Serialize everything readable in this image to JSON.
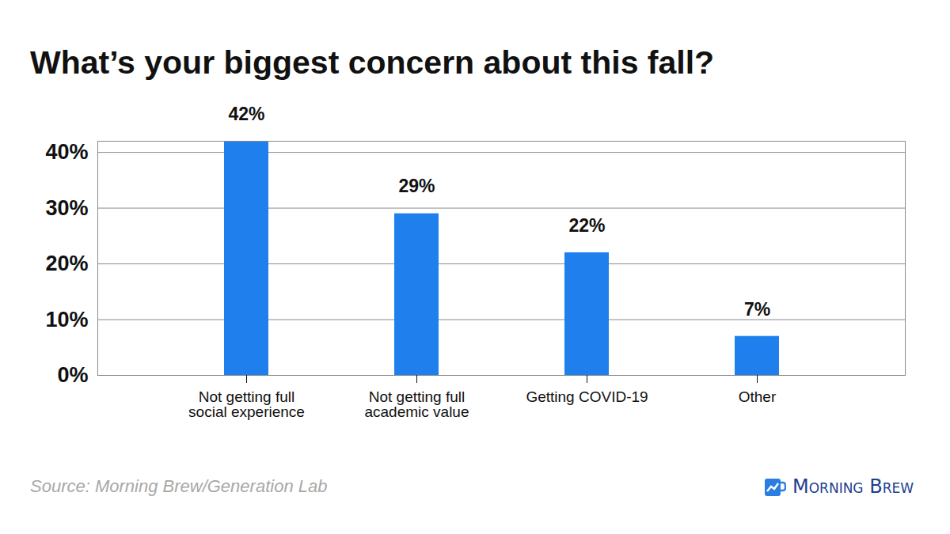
{
  "chart_data": {
    "type": "bar",
    "title": "What’s your biggest concern about this fall?",
    "categories": [
      "Not getting full social experience",
      "Not getting full academic value",
      "Getting COVID-19",
      "Other"
    ],
    "values": [
      42,
      29,
      22,
      7
    ],
    "value_labels": [
      "42%",
      "29%",
      "22%",
      "7%"
    ],
    "data_labels": true,
    "color": "#1f80ed",
    "ylim": [
      0,
      42
    ],
    "yticks": [
      {
        "value": 0,
        "label": "0%"
      },
      {
        "value": 10,
        "label": "10%"
      },
      {
        "value": 20,
        "label": "20%"
      },
      {
        "value": 30,
        "label": "30%"
      },
      {
        "value": 40,
        "label": "40%"
      }
    ],
    "grid": true,
    "caption": "Source: Morning Brew/Generation Lab",
    "brand": "Morning Brew"
  }
}
